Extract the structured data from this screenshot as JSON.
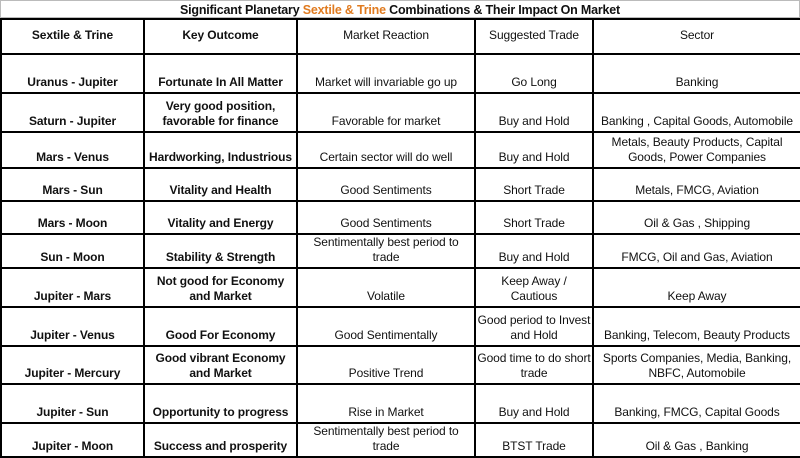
{
  "title": {
    "pre": "Significant Planetary ",
    "highlight": "Sextile & Trine",
    "post": " Combinations & Their Impact On Market",
    "highlight_color": "#e07b20"
  },
  "headers": [
    "Sextile & Trine",
    "Key Outcome",
    "Market Reaction",
    "Suggested Trade",
    "Sector"
  ],
  "rows": [
    [
      "Uranus - Jupiter",
      "Fortunate In All Matter",
      "Market will invariable go up",
      "Go Long",
      "Banking"
    ],
    [
      "Saturn - Jupiter",
      "Very good position, favorable for finance",
      "Favorable for market",
      "Buy and Hold",
      "Banking , Capital Goods, Automobile"
    ],
    [
      "Mars - Venus",
      "Hardworking, Industrious",
      "Certain sector will do well",
      "Buy and Hold",
      "Metals, Beauty Products, Capital Goods, Power Companies"
    ],
    [
      "Mars - Sun",
      "Vitality and Health",
      "Good Sentiments",
      "Short Trade",
      "Metals, FMCG, Aviation"
    ],
    [
      "Mars - Moon",
      "Vitality and Energy",
      "Good Sentiments",
      "Short Trade",
      "Oil & Gas , Shipping"
    ],
    [
      "Sun - Moon",
      "Stability & Strength",
      "Sentimentally best period to trade",
      "Buy and Hold",
      "FMCG, Oil and Gas, Aviation"
    ],
    [
      "Jupiter - Mars",
      "Not good for Economy and Market",
      "Volatile",
      "Keep Away / Cautious",
      "Keep Away"
    ],
    [
      "Jupiter - Venus",
      "Good For Economy",
      "Good Sentimentally",
      "Good period to Invest and Hold",
      "Banking, Telecom, Beauty Products"
    ],
    [
      "Jupiter - Mercury",
      "Good vibrant Economy and Market",
      "Positive Trend",
      "Good time to do short trade",
      "Sports Companies, Media, Banking, NBFC, Automobile"
    ],
    [
      "Jupiter - Sun",
      "Opportunity to progress",
      "Rise in Market",
      "Buy and Hold",
      "Banking, FMCG, Capital Goods"
    ],
    [
      "Jupiter - Moon",
      "Success and prosperity",
      "Sentimentally best period to trade",
      "BTST Trade",
      "Oil & Gas , Banking"
    ]
  ]
}
